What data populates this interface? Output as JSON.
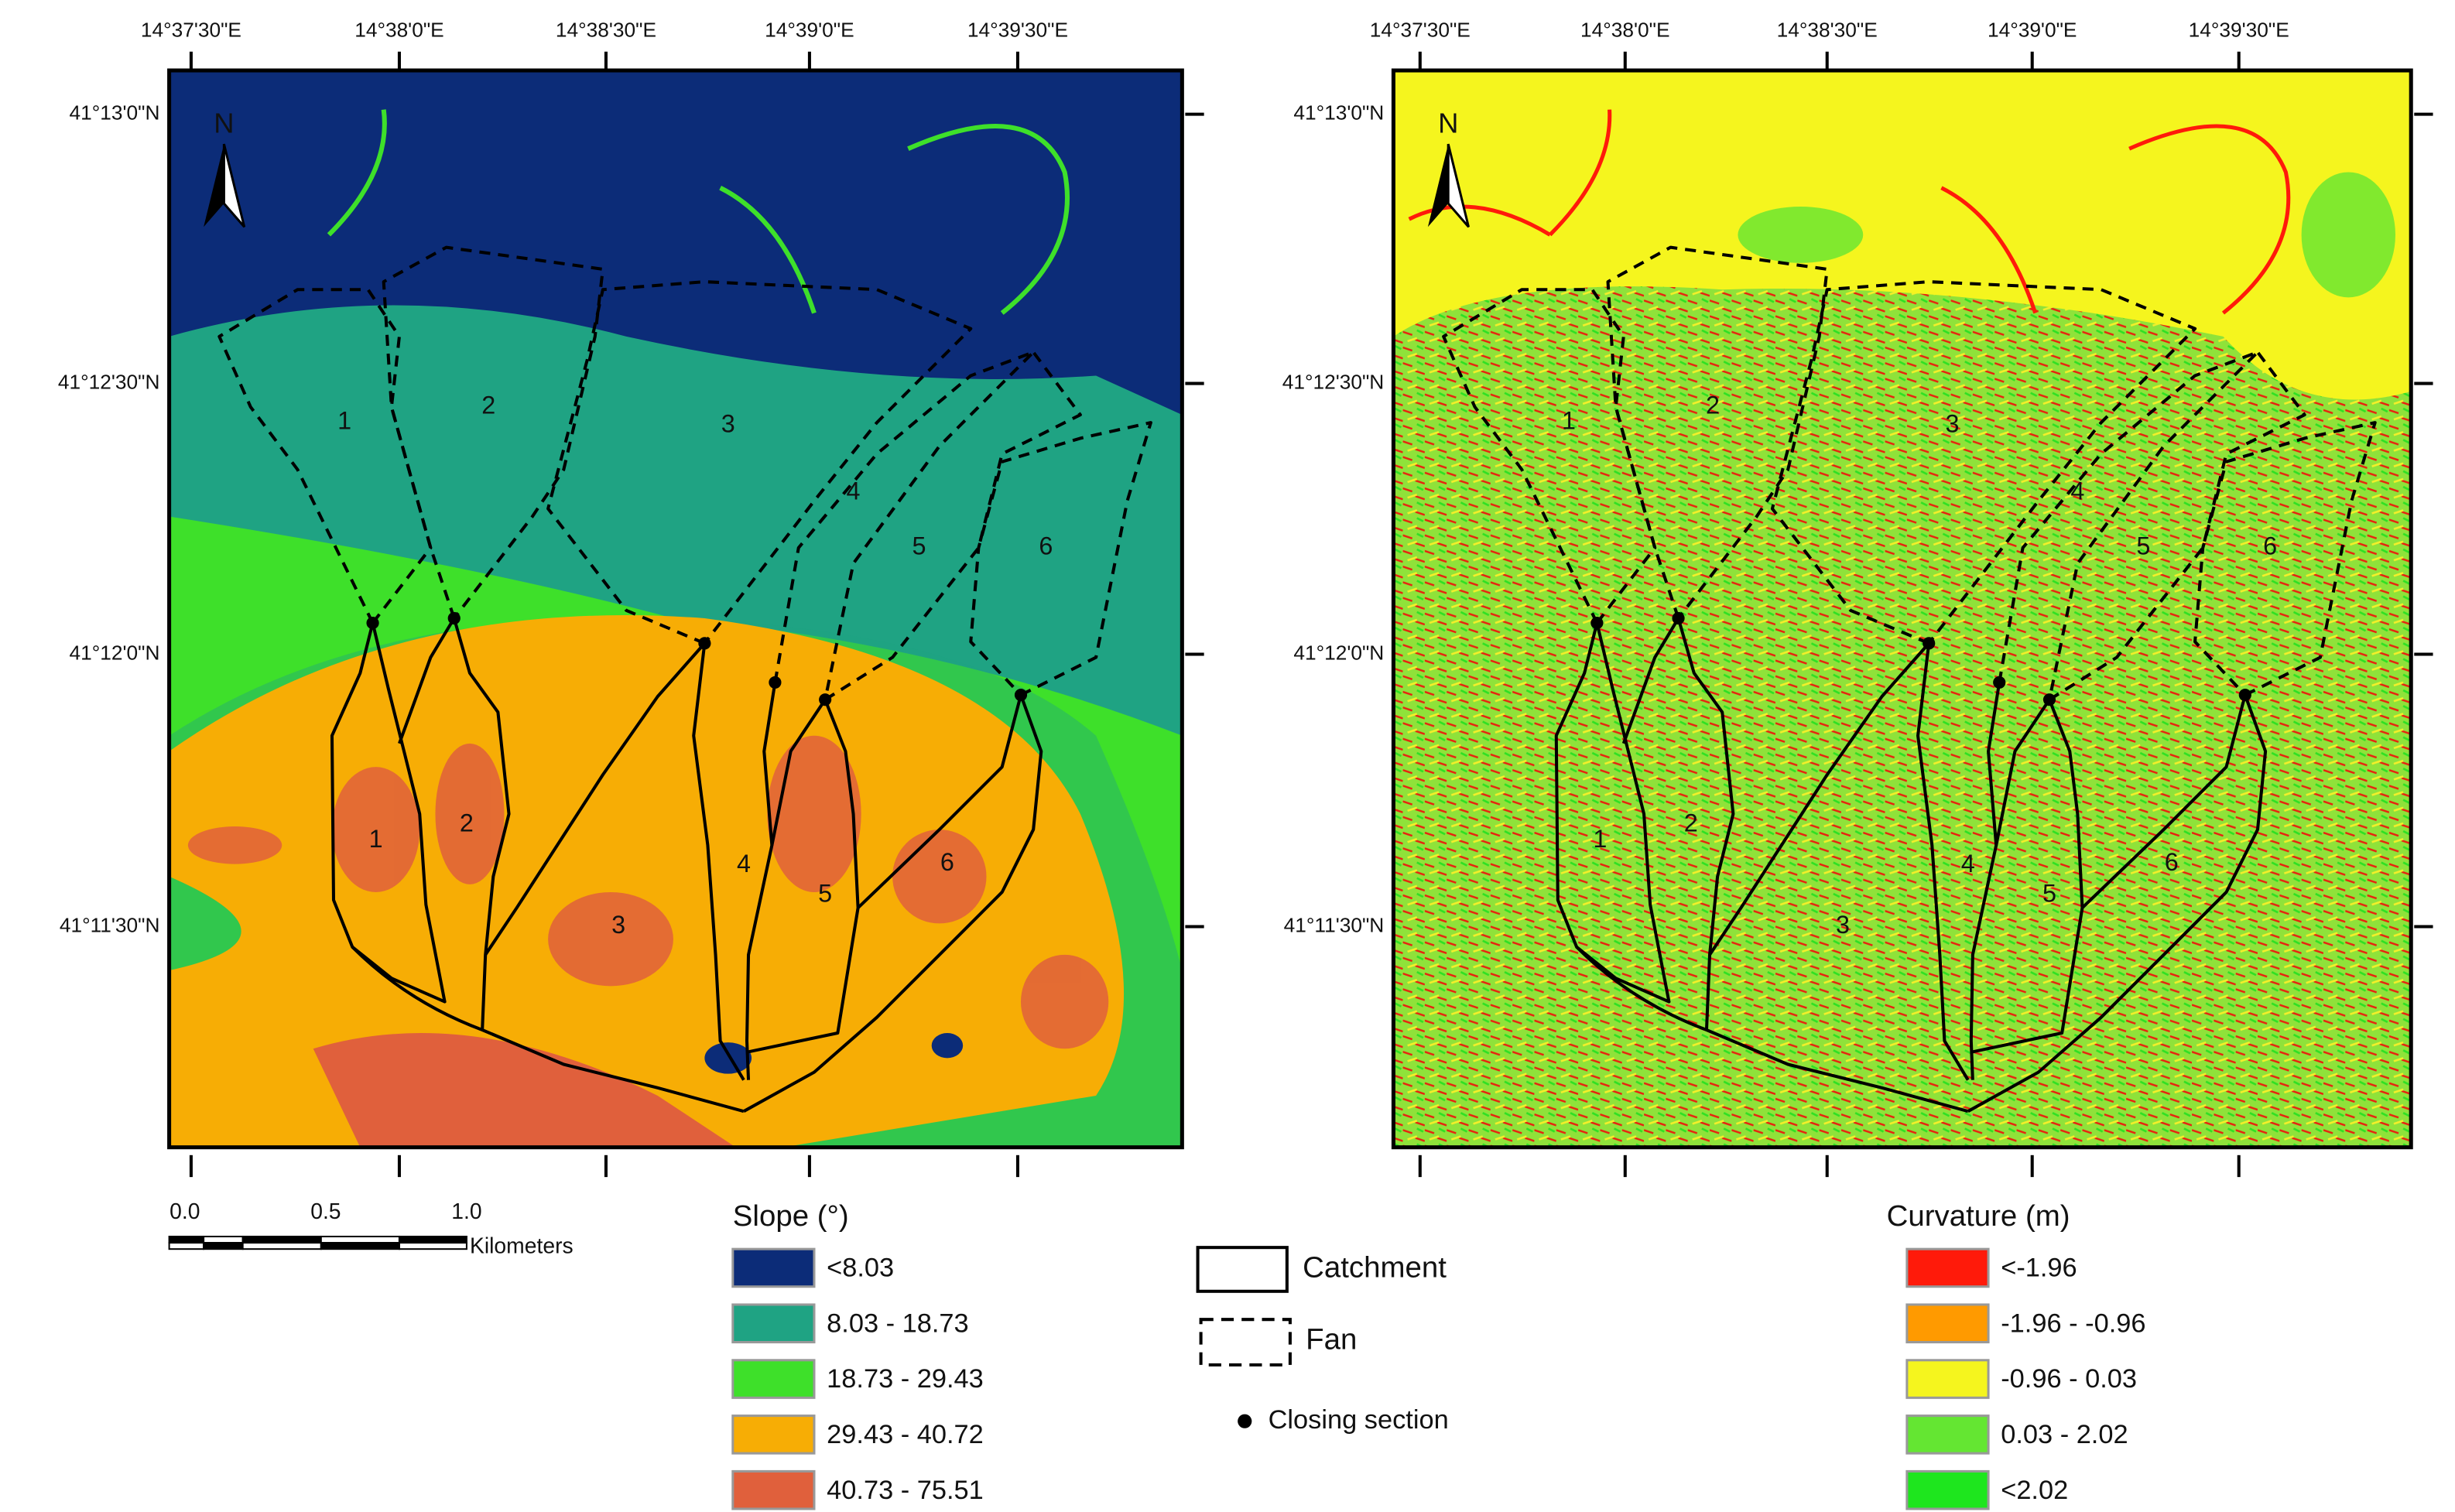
{
  "maps": [
    {
      "north": "N",
      "x_labels": [
        "14°37'30\"E",
        "14°38'0\"E",
        "14°38'30\"E",
        "14°39'0\"E",
        "14°39'30\"E"
      ],
      "y_labels": [
        "41°13'0\"N",
        "41°12'30\"N",
        "41°12'0\"N",
        "41°11'30\"N"
      ],
      "fan_labels": [
        "1",
        "2",
        "3",
        "4",
        "5",
        "6"
      ],
      "catchment_labels": [
        "1",
        "2",
        "3",
        "4",
        "5",
        "6"
      ]
    },
    {
      "north": "N",
      "x_labels": [
        "14°37'30\"E",
        "14°38'0\"E",
        "14°38'30\"E",
        "14°39'0\"E",
        "14°39'30\"E"
      ],
      "y_labels": [
        "41°13'0\"N",
        "41°12'30\"N",
        "41°12'0\"N",
        "41°11'30\"N"
      ],
      "fan_labels": [
        "1",
        "2",
        "3",
        "4",
        "5",
        "6"
      ],
      "catchment_labels": [
        "1",
        "2",
        "3",
        "4",
        "5",
        "6"
      ]
    }
  ],
  "scale_bar": {
    "ticks": [
      "0.0",
      "0.5",
      "1.0"
    ],
    "unit": "Kilometers"
  },
  "slope_legend": {
    "title": "Slope (°)",
    "items": [
      {
        "label": "<8.03",
        "color": "#0c2c78"
      },
      {
        "label": "8.03 - 18.73",
        "color": "#1fa383"
      },
      {
        "label": "18.73 - 29.43",
        "color": "#3ee02a"
      },
      {
        "label": "29.43 - 40.72",
        "color": "#f7ad05"
      },
      {
        "label": "40.73 - 75.51",
        "color": "#e0603c"
      }
    ]
  },
  "line_legend": {
    "catchment": "Catchment",
    "fan": "Fan",
    "closing_section": "Closing section"
  },
  "curvature_legend": {
    "title": "Curvature (m)",
    "items": [
      {
        "label": "<-1.96",
        "color": "#ff1a0a"
      },
      {
        "label": "-1.96 - -0.96",
        "color": "#ff9a00"
      },
      {
        "label": "-0.96 - 0.03",
        "color": "#f5f51e"
      },
      {
        "label": "0.03 - 2.02",
        "color": "#64e632"
      },
      {
        "label": "<2.02",
        "color": "#1ee61e"
      }
    ]
  }
}
